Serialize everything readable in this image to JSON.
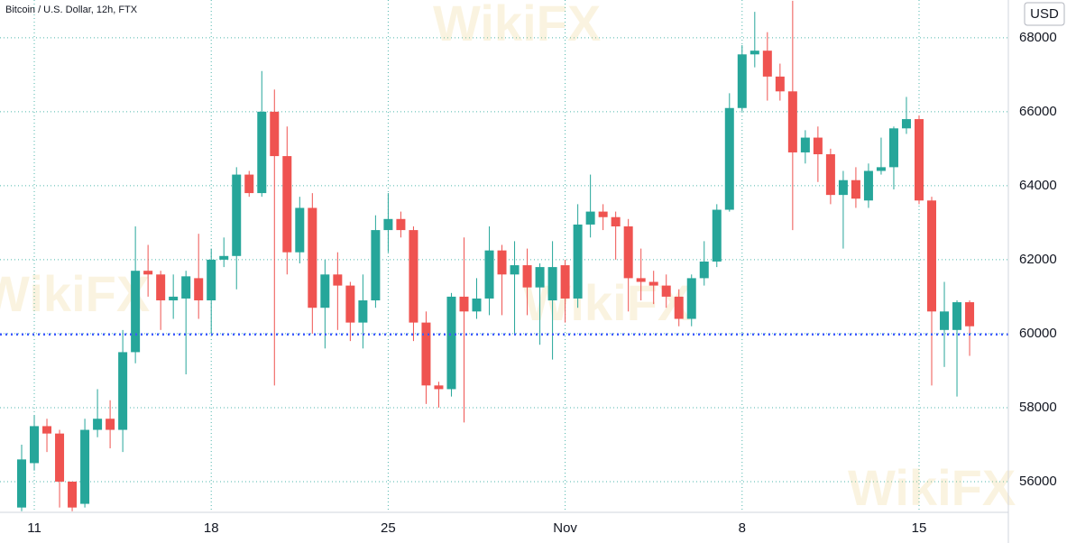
{
  "chart_data": {
    "type": "candlestick",
    "title": "Bitcoin / U.S. Dollar, 12h, FTX",
    "currency": "USD",
    "watermark": "WikiFX",
    "up_color": "#26a69a",
    "down_color": "#ef5350",
    "price_line_color": "#3d5afe",
    "price_line": 59980,
    "categories": [
      null,
      "11",
      null,
      null,
      null,
      null,
      null,
      null,
      null,
      null,
      null,
      null,
      null,
      null,
      null,
      "18",
      null,
      null,
      null,
      null,
      null,
      null,
      null,
      null,
      null,
      null,
      null,
      null,
      null,
      "25",
      null,
      null,
      null,
      null,
      null,
      null,
      null,
      null,
      null,
      null,
      null,
      null,
      null,
      "Nov",
      null,
      null,
      null,
      null,
      null,
      null,
      null,
      null,
      null,
      null,
      null,
      null,
      null,
      "8",
      null,
      null,
      null,
      null,
      null,
      null,
      null,
      null,
      null,
      null,
      null,
      null,
      null,
      "15",
      null,
      null,
      null,
      null
    ],
    "open": [
      55300,
      56500,
      57500,
      57300,
      56000,
      55400,
      57400,
      57700,
      57400,
      59500,
      61700,
      61600,
      60900,
      60950,
      61500,
      60900,
      62000,
      62100,
      64300,
      63800,
      66000,
      64800,
      62200,
      63400,
      60700,
      61600,
      61300,
      60300,
      60900,
      62800,
      63100,
      62800,
      60300,
      58600,
      58500,
      61000,
      60600,
      60950,
      62250,
      61600,
      61850,
      61250,
      60900,
      61850,
      60950,
      62950,
      63300,
      63150,
      62900,
      61500,
      61400,
      61300,
      61000,
      60400,
      61500,
      61950,
      63350,
      66100,
      67550,
      67650,
      66950,
      66550,
      64900,
      65300,
      64850,
      63750,
      64150,
      63600,
      64400,
      64500,
      65550,
      65800,
      63600,
      60100,
      60100,
      60850
    ],
    "high": [
      57000,
      57800,
      57700,
      57400,
      56000,
      57700,
      58500,
      58200,
      60100,
      62900,
      62400,
      61700,
      61600,
      61700,
      62700,
      62300,
      62600,
      64500,
      64400,
      67100,
      66600,
      65600,
      63700,
      63800,
      62000,
      62200,
      61400,
      61600,
      63200,
      63800,
      63300,
      62900,
      60600,
      58700,
      61100,
      62600,
      61500,
      62900,
      62400,
      62500,
      62300,
      61900,
      62500,
      62000,
      63500,
      64300,
      63500,
      63300,
      63100,
      62300,
      61700,
      61600,
      61200,
      61600,
      62500,
      63500,
      66500,
      67800,
      68700,
      68150,
      67300,
      69000,
      65500,
      65600,
      65000,
      64400,
      64500,
      64600,
      65300,
      65600,
      66400,
      65900,
      63700,
      61400,
      60900,
      60900
    ],
    "low": [
      55200,
      56300,
      56800,
      55300,
      55200,
      55300,
      57200,
      56900,
      56800,
      59200,
      61000,
      60100,
      60400,
      58900,
      60400,
      60000,
      61800,
      61200,
      63700,
      63700,
      58600,
      61600,
      61900,
      60000,
      59600,
      60100,
      59800,
      59600,
      60700,
      62200,
      62600,
      59800,
      58100,
      58000,
      58300,
      57600,
      60400,
      60500,
      60500,
      60000,
      60500,
      59700,
      59300,
      60300,
      60700,
      62600,
      62800,
      62000,
      60600,
      60900,
      60800,
      60700,
      60200,
      60200,
      61300,
      61800,
      63300,
      66000,
      67200,
      66300,
      66300,
      62800,
      64600,
      64100,
      63500,
      62300,
      63400,
      63400,
      64300,
      63900,
      65400,
      63500,
      58600,
      59100,
      58300,
      59400
    ],
    "close": [
      56600,
      57500,
      57300,
      56000,
      55300,
      57400,
      57700,
      57400,
      59500,
      61700,
      61600,
      60900,
      61000,
      61550,
      60900,
      62000,
      62100,
      64300,
      63800,
      66000,
      64800,
      62200,
      63400,
      60700,
      61600,
      61300,
      60300,
      60900,
      62800,
      63100,
      62800,
      60300,
      58600,
      58500,
      61000,
      60600,
      60950,
      62250,
      61600,
      61850,
      61250,
      61800,
      61800,
      60950,
      62950,
      63300,
      63150,
      62900,
      61500,
      61400,
      61300,
      61000,
      60400,
      61500,
      61950,
      63350,
      66100,
      67550,
      67650,
      66950,
      66550,
      64900,
      65300,
      64850,
      63750,
      64150,
      63650,
      64400,
      64500,
      65550,
      65800,
      63600,
      60600,
      60600,
      60850,
      60200
    ],
    "ylim": [
      55170,
      69020
    ],
    "yticks": [
      56000,
      58000,
      60000,
      62000,
      64000,
      66000,
      68000
    ],
    "grid": true
  }
}
